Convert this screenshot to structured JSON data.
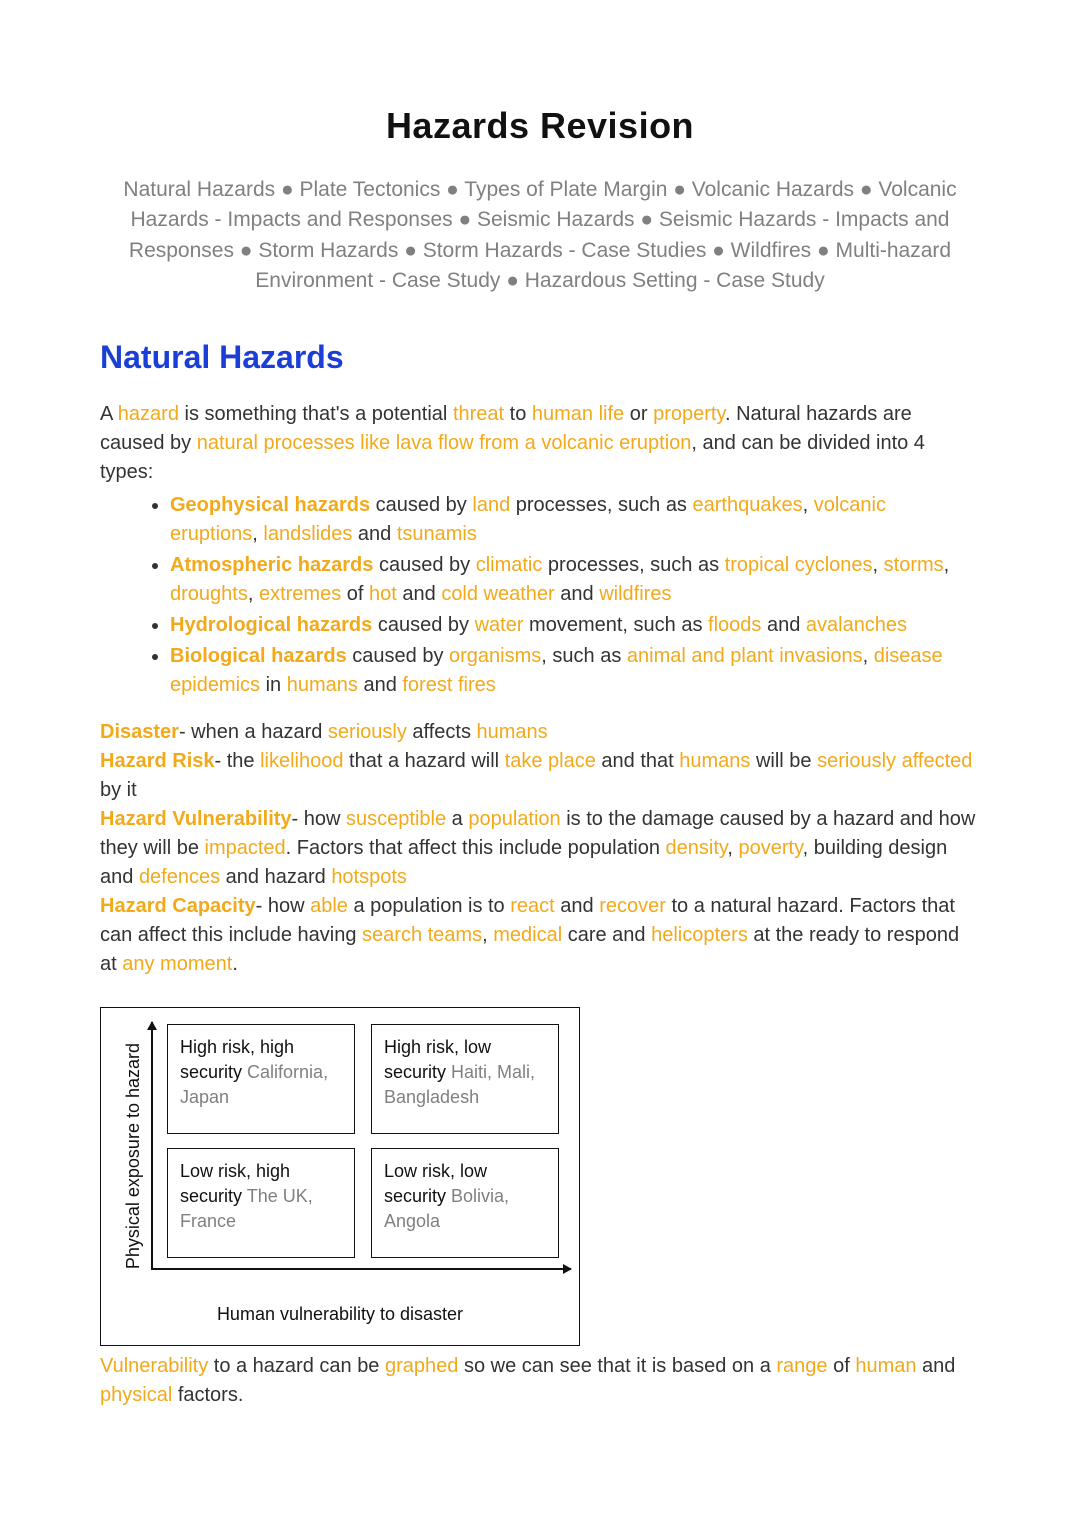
{
  "colors": {
    "highlight": "#f2a91a",
    "heading_blue": "#1b3fd6",
    "muted": "#808080",
    "text": "#333333",
    "border": "#111111",
    "background": "#ffffff"
  },
  "title": "Hazards Revision",
  "subtitle": "Natural Hazards ● Plate Tectonics ● Types of Plate Margin ● Volcanic Hazards ● Volcanic Hazards - Impacts and Responses ● Seismic Hazards ● Seismic Hazards -  Impacts and Responses ● Storm Hazards ● Storm Hazards - Case Studies ● Wildfires ● Multi-hazard Environment - Case Study ● Hazardous Setting - Case Study",
  "section_heading": "Natural Hazards",
  "intro": {
    "p1_a": "A ",
    "p1_hazard": "hazard",
    "p1_b": " is something that's a potential ",
    "p1_threat": "threat",
    "p1_c": " to ",
    "p1_humanlife": "human life",
    "p1_d": " or ",
    "p1_property": "property",
    "p1_e": ". Natural hazards are caused by ",
    "p1_natproc": "natural processes like lava flow from a volcanic eruption",
    "p1_f": ", and can be divided into 4 types:"
  },
  "hazard_types": [
    {
      "bold": "Geophysical hazards",
      "a": " caused by ",
      "k1": "land",
      "b": " processes, such as ",
      "k2": "earthquakes",
      "c": ", ",
      "k3": "volcanic eruptions",
      "d": ", ",
      "k4": "landslides",
      "e": " and ",
      "k5": "tsunamis"
    },
    {
      "bold": "Atmospheric hazards",
      "a": " caused by ",
      "k1": "climatic",
      "b": " processes, such as ",
      "k2": "tropical cyclones",
      "c": ", ",
      "k3": "storms",
      "d": ", ",
      "k4": "droughts",
      "e": ", ",
      "k5": "extremes",
      "f": " of ",
      "k6": "hot",
      "g": " and ",
      "k7": "cold weather",
      "h": " and ",
      "k8": "wildfires"
    },
    {
      "bold": "Hydrological hazards",
      "a": " caused by ",
      "k1": "water",
      "b": " movement, such as ",
      "k2": "floods",
      "c": " and ",
      "k3": "avalanches"
    },
    {
      "bold": "Biological hazards",
      "a": " caused by ",
      "k1": "organisms",
      "b": ", such as ",
      "k2": "animal and plant invasions",
      "c": ", ",
      "k3": "disease epidemics",
      "d": " in ",
      "k4": "humans",
      "e": " and ",
      "k5": "forest fires"
    }
  ],
  "definitions": {
    "disaster_term": "Disaster",
    "disaster_a": "- when a hazard ",
    "disaster_k1": "seriously",
    "disaster_b": " affects ",
    "disaster_k2": "humans",
    "risk_term": "Hazard Risk",
    "risk_a": "- the ",
    "risk_k1": "likelihood",
    "risk_b": " that a hazard will ",
    "risk_k2": "take place",
    "risk_c": " and that ",
    "risk_k3": "humans",
    "risk_d": " will be ",
    "risk_k4": "seriously affected",
    "risk_e": " by it",
    "vuln_term": "Hazard Vulnerability",
    "vuln_a": "- how ",
    "vuln_k1": "susceptible",
    "vuln_b": " a ",
    "vuln_k2": "population",
    "vuln_c": " is to the damage caused by a hazard and how they will be ",
    "vuln_k3": "impacted",
    "vuln_d": ". Factors that affect this include population ",
    "vuln_k4": "density",
    "vuln_e": ", ",
    "vuln_k5": "poverty",
    "vuln_f": ", building design and ",
    "vuln_k6": "defences",
    "vuln_g": " and hazard ",
    "vuln_k7": "hotspots",
    "cap_term": "Hazard Capacity",
    "cap_a": "- how ",
    "cap_k1": "able",
    "cap_b": " a population is to ",
    "cap_k2": "react",
    "cap_c": " and ",
    "cap_k3": "recover",
    "cap_d": " to a natural hazard. Factors that can affect this include having ",
    "cap_k4": "search teams",
    "cap_e": ", ",
    "cap_k5": "medical",
    "cap_f": " care and ",
    "cap_k6": "helicopters",
    "cap_g": " at the ready to respond at ",
    "cap_k7": "any moment",
    "cap_h": "."
  },
  "chart": {
    "type": "quadrant",
    "y_axis_label": "Physical exposure to hazard",
    "x_axis_label": "Human vulnerability to disaster",
    "cells": [
      {
        "text": "High risk, high security ",
        "example": "California, Japan"
      },
      {
        "text": "High risk, low security ",
        "example": "Haiti, Mali, Bangladesh"
      },
      {
        "text": "Low risk, high security ",
        "example": "The UK, France"
      },
      {
        "text": "Low risk, low security ",
        "example": "Bolivia, Angola"
      }
    ],
    "border_color": "#111111",
    "example_color": "#808080",
    "fontsize": 18
  },
  "closing": {
    "k1": "Vulnerability",
    "a": " to a hazard can be ",
    "k2": "graphed",
    "b": " so we can see that it is based on a ",
    "k3": "range",
    "c": " of ",
    "k4": "human",
    "d": " and ",
    "k5": "physical",
    "e": " factors."
  }
}
